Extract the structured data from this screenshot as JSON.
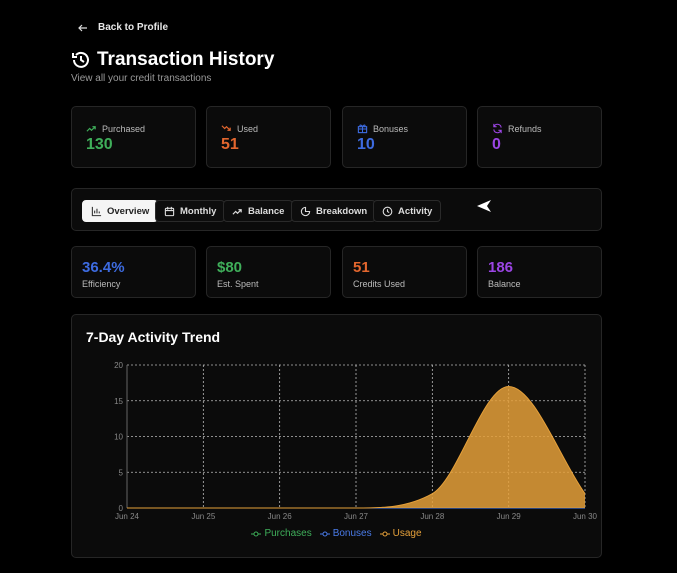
{
  "nav": {
    "back_label": "Back to Profile"
  },
  "header": {
    "title": "Transaction History",
    "subtitle": "View all your credit transactions"
  },
  "stats": [
    {
      "label": "Purchased",
      "value": "130",
      "icon": "trending-up-icon",
      "color": "#3fae5a"
    },
    {
      "label": "Used",
      "value": "51",
      "icon": "trending-down-icon",
      "color": "#e2662e"
    },
    {
      "label": "Bonuses",
      "value": "10",
      "icon": "gift-icon",
      "color": "#3d6be0"
    },
    {
      "label": "Refunds",
      "value": "0",
      "icon": "refresh-icon",
      "color": "#9b45e4"
    }
  ],
  "tabs": [
    {
      "label": "Overview",
      "icon": "bar-chart-icon",
      "active": true
    },
    {
      "label": "Monthly",
      "icon": "calendar-icon"
    },
    {
      "label": "Balance",
      "icon": "trending-up-icon"
    },
    {
      "label": "Breakdown",
      "icon": "pie-chart-icon"
    },
    {
      "label": "Activity",
      "icon": "clock-icon"
    }
  ],
  "metrics": [
    {
      "value": "36.4%",
      "label": "Efficiency",
      "color": "#3d6be0"
    },
    {
      "value": "$80",
      "label": "Est. Spent",
      "color": "#3fae5a"
    },
    {
      "value": "51",
      "label": "Credits Used",
      "color": "#e2662e"
    },
    {
      "value": "186",
      "label": "Balance",
      "color": "#9b45e4"
    }
  ],
  "chart_data": {
    "type": "area",
    "title": "7-Day Activity Trend",
    "categories": [
      "Jun 24",
      "Jun 25",
      "Jun 26",
      "Jun 27",
      "Jun 28",
      "Jun 29",
      "Jun 30"
    ],
    "yticks": [
      "0",
      "5",
      "10",
      "15",
      "20"
    ],
    "ylim": [
      0,
      20
    ],
    "grid": true,
    "legend_placement": "bottom",
    "series": [
      {
        "name": "Purchases",
        "values": [
          0,
          0,
          0,
          0,
          0,
          0,
          0
        ],
        "color": "#3fae5a"
      },
      {
        "name": "Bonuses",
        "values": [
          0,
          0,
          0,
          0,
          0,
          0,
          0
        ],
        "color": "#4a7be8"
      },
      {
        "name": "Usage",
        "values": [
          0,
          0,
          0,
          0,
          2,
          17,
          2
        ],
        "color": "#e5a03a"
      }
    ]
  }
}
